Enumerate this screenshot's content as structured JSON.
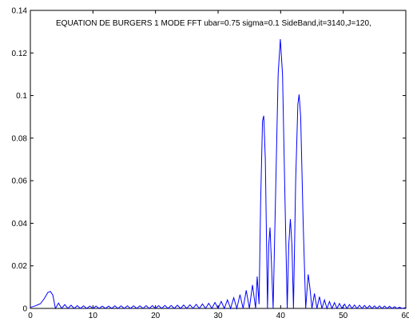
{
  "chart_data": {
    "type": "line",
    "title": "EQUATION DE BURGERS 1 MODE FFT ubar=0.75 sigma=0.1  SideBand,it=3140,J=120,",
    "xlabel": "",
    "ylabel": "",
    "xlim": [
      0,
      60
    ],
    "ylim": [
      0,
      0.14
    ],
    "x_ticks": [
      0,
      10,
      20,
      30,
      40,
      50,
      60
    ],
    "y_ticks": [
      0,
      0.02,
      0.04,
      0.06,
      0.08,
      0.1,
      0.12,
      0.14
    ],
    "x_tick_labels": [
      "0",
      "10",
      "20",
      "30",
      "40",
      "50",
      "60"
    ],
    "y_tick_labels": [
      "0",
      "0.02",
      "0.04",
      "0.06",
      "0.08",
      "0.1",
      "0.12",
      "0.14"
    ],
    "grid": false,
    "line_color": "#0000ff",
    "series": [
      {
        "values_description_only_in_points": "",
        "points": [
          [
            0.0,
            0.0005
          ],
          [
            0.8,
            0.0012
          ],
          [
            1.6,
            0.0022
          ],
          [
            2.2,
            0.0045
          ],
          [
            2.8,
            0.0075
          ],
          [
            3.2,
            0.008
          ],
          [
            3.6,
            0.0062
          ],
          [
            4.0,
            0.0
          ],
          [
            4.5,
            0.0025
          ],
          [
            5.0,
            0.0
          ],
          [
            5.5,
            0.0018
          ],
          [
            6.0,
            0.0
          ],
          [
            6.5,
            0.0015
          ],
          [
            7.0,
            0.0
          ],
          [
            7.5,
            0.0013
          ],
          [
            8.0,
            0.0
          ],
          [
            8.5,
            0.0012
          ],
          [
            9.0,
            0.0
          ],
          [
            9.5,
            0.0011
          ],
          [
            10.0,
            0.0
          ],
          [
            10.5,
            0.0011
          ],
          [
            11.0,
            0.0
          ],
          [
            11.5,
            0.0011
          ],
          [
            12.0,
            0.0
          ],
          [
            12.5,
            0.0011
          ],
          [
            13.0,
            0.0
          ],
          [
            13.5,
            0.0012
          ],
          [
            14.0,
            0.0
          ],
          [
            14.5,
            0.0012
          ],
          [
            15.0,
            0.0
          ],
          [
            15.5,
            0.0012
          ],
          [
            16.0,
            0.0
          ],
          [
            16.5,
            0.0012
          ],
          [
            17.0,
            0.0
          ],
          [
            17.5,
            0.0012
          ],
          [
            18.0,
            0.0
          ],
          [
            18.5,
            0.0013
          ],
          [
            19.0,
            0.0
          ],
          [
            19.5,
            0.0013
          ],
          [
            20.0,
            0.0
          ],
          [
            20.5,
            0.0013
          ],
          [
            21.0,
            0.0
          ],
          [
            21.5,
            0.0014
          ],
          [
            22.0,
            0.0
          ],
          [
            22.5,
            0.0014
          ],
          [
            23.0,
            0.0
          ],
          [
            23.5,
            0.0015
          ],
          [
            24.0,
            0.0
          ],
          [
            24.5,
            0.0016
          ],
          [
            25.0,
            0.0
          ],
          [
            25.5,
            0.0017
          ],
          [
            26.0,
            0.0
          ],
          [
            26.5,
            0.0019
          ],
          [
            27.0,
            0.0
          ],
          [
            27.5,
            0.0021
          ],
          [
            28.0,
            0.0
          ],
          [
            28.5,
            0.0024
          ],
          [
            29.0,
            0.0
          ],
          [
            29.5,
            0.0028
          ],
          [
            30.0,
            0.0
          ],
          [
            30.5,
            0.0033
          ],
          [
            31.0,
            0.0
          ],
          [
            31.5,
            0.004
          ],
          [
            32.0,
            0.0
          ],
          [
            32.5,
            0.005
          ],
          [
            33.0,
            0.0
          ],
          [
            33.5,
            0.0065
          ],
          [
            34.0,
            0.0
          ],
          [
            34.5,
            0.0085
          ],
          [
            35.0,
            0.0
          ],
          [
            35.5,
            0.011
          ],
          [
            36.0,
            0.0
          ],
          [
            36.25,
            0.015
          ],
          [
            36.55,
            0.002
          ],
          [
            36.8,
            0.05
          ],
          [
            37.1,
            0.088
          ],
          [
            37.3,
            0.0905
          ],
          [
            37.55,
            0.07
          ],
          [
            37.9,
            0.0
          ],
          [
            38.1,
            0.03
          ],
          [
            38.3,
            0.038
          ],
          [
            38.55,
            0.02
          ],
          [
            38.8,
            0.0
          ],
          [
            39.2,
            0.055
          ],
          [
            39.6,
            0.11
          ],
          [
            39.95,
            0.1265
          ],
          [
            40.3,
            0.11
          ],
          [
            40.7,
            0.05
          ],
          [
            41.05,
            0.0
          ],
          [
            41.3,
            0.03
          ],
          [
            41.55,
            0.042
          ],
          [
            41.8,
            0.03
          ],
          [
            42.05,
            0.0
          ],
          [
            42.4,
            0.06
          ],
          [
            42.75,
            0.096
          ],
          [
            42.95,
            0.1005
          ],
          [
            43.2,
            0.09
          ],
          [
            43.6,
            0.04
          ],
          [
            44.0,
            0.0
          ],
          [
            44.4,
            0.016
          ],
          [
            44.7,
            0.009
          ],
          [
            45.0,
            0.0
          ],
          [
            45.4,
            0.007
          ],
          [
            45.8,
            0.0
          ],
          [
            46.2,
            0.0055
          ],
          [
            46.6,
            0.0
          ],
          [
            47.0,
            0.004
          ],
          [
            47.4,
            0.0
          ],
          [
            47.8,
            0.0032
          ],
          [
            48.2,
            0.0
          ],
          [
            48.6,
            0.0027
          ],
          [
            49.0,
            0.0
          ],
          [
            49.4,
            0.0023
          ],
          [
            49.8,
            0.0
          ],
          [
            50.2,
            0.002
          ],
          [
            50.6,
            0.0
          ],
          [
            51.0,
            0.0018
          ],
          [
            51.4,
            0.0
          ],
          [
            51.8,
            0.0016
          ],
          [
            52.2,
            0.0
          ],
          [
            52.6,
            0.0015
          ],
          [
            53.0,
            0.0
          ],
          [
            53.4,
            0.0014
          ],
          [
            53.8,
            0.0
          ],
          [
            54.2,
            0.0013
          ],
          [
            54.6,
            0.0
          ],
          [
            55.0,
            0.0012
          ],
          [
            55.4,
            0.0
          ],
          [
            55.8,
            0.0012
          ],
          [
            56.2,
            0.0
          ],
          [
            56.6,
            0.0011
          ],
          [
            57.0,
            0.0
          ],
          [
            57.4,
            0.001
          ],
          [
            57.8,
            0.0
          ],
          [
            58.2,
            0.0008
          ],
          [
            58.6,
            0.0
          ],
          [
            59.0,
            0.0006
          ],
          [
            59.4,
            0.0
          ],
          [
            60.0,
            0.0004
          ]
        ]
      }
    ]
  }
}
